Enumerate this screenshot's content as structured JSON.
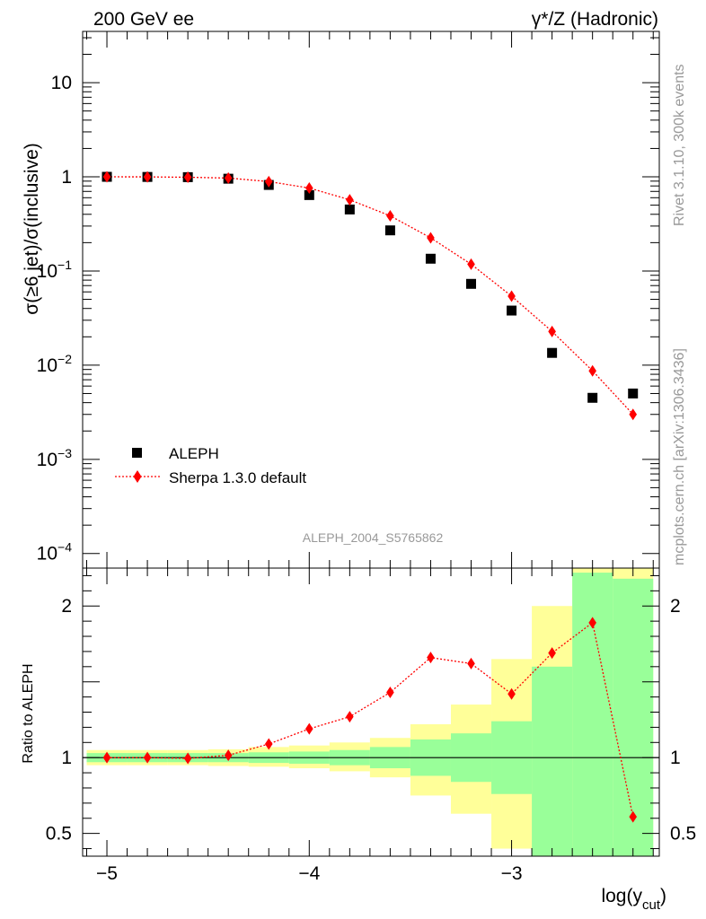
{
  "header": {
    "left": "200 GeV ee",
    "right": "γ*/Z (Hadronic)"
  },
  "side_labels": {
    "rivet": "Rivet 3.1.10,  300k events",
    "mcplots": "mcplots.cern.ch [arXiv:1306.3436]"
  },
  "watermark": "ALEPH_2004_S5765862",
  "colors": {
    "data": "#000000",
    "mc": "#ff0000",
    "band_inner": "#99ff99",
    "band_outer": "#ffff99"
  },
  "chart_data": [
    {
      "type": "scatter",
      "title": "",
      "ylabel": "σ(≥6 jet)/σ(inclusive)",
      "yscale": "log",
      "ylim": [
        7e-05,
        35
      ],
      "xlim": [
        -5.12,
        -2.27
      ],
      "ytick_labels": [
        {
          "value": 10,
          "label": "10"
        },
        {
          "value": 1,
          "label": "1"
        },
        {
          "value": 0.1,
          "base": "10",
          "exp": "−1"
        },
        {
          "value": 0.01,
          "base": "10",
          "exp": "−2"
        },
        {
          "value": 0.001,
          "base": "10",
          "exp": "−3"
        },
        {
          "value": 0.0001,
          "base": "10",
          "exp": "−4"
        }
      ],
      "legend": {
        "position": "bottom-left",
        "entries": [
          {
            "name": "ALEPH",
            "marker": "square"
          },
          {
            "name": "Sherpa 1.3.0 default",
            "marker": "diamond-dotted-line"
          }
        ]
      },
      "series": [
        {
          "name": "ALEPH",
          "x": [
            -5.0,
            -4.8,
            -4.6,
            -4.4,
            -4.2,
            -4.0,
            -3.8,
            -3.6,
            -3.4,
            -3.2,
            -3.0,
            -2.8,
            -2.6,
            -2.4
          ],
          "y": [
            1.0,
            0.997,
            0.992,
            0.955,
            0.82,
            0.64,
            0.45,
            0.27,
            0.135,
            0.073,
            0.038,
            0.0135,
            0.0045,
            0.005
          ]
        },
        {
          "name": "Sherpa 1.3.0 default",
          "x": [
            -5.0,
            -4.8,
            -4.6,
            -4.4,
            -4.2,
            -4.0,
            -3.8,
            -3.6,
            -3.4,
            -3.2,
            -3.0,
            -2.8,
            -2.6,
            -2.4
          ],
          "y": [
            1.0,
            0.998,
            0.99,
            0.97,
            0.89,
            0.76,
            0.57,
            0.385,
            0.225,
            0.118,
            0.054,
            0.0228,
            0.0087,
            0.003
          ]
        }
      ]
    },
    {
      "type": "scatter",
      "ylabel": "Ratio to ALEPH",
      "xlabel_main": "log(y",
      "xlabel_sub": "cut",
      "xlabel_end": ")",
      "ylim": [
        0.35,
        2.25
      ],
      "xlim": [
        -5.12,
        -2.27
      ],
      "xticks": [
        -5,
        -4,
        -3
      ],
      "xtick_labels": [
        "−5",
        "−4",
        "−3"
      ],
      "yticks": [
        2,
        1,
        0.5
      ],
      "ytick_labels": [
        "2",
        "1",
        "0.5"
      ],
      "reference_line": 1,
      "bands": {
        "edges": [
          -5.1,
          -4.9,
          -4.7,
          -4.5,
          -4.3,
          -4.1,
          -3.9,
          -3.7,
          -3.5,
          -3.3,
          -3.1,
          -2.9,
          -2.7,
          -2.5,
          -2.3
        ],
        "inner": [
          [
            0.97,
            1.03
          ],
          [
            0.97,
            1.03
          ],
          [
            0.97,
            1.03
          ],
          [
            0.97,
            1.03
          ],
          [
            0.965,
            1.035
          ],
          [
            0.96,
            1.04
          ],
          [
            0.95,
            1.05
          ],
          [
            0.93,
            1.07
          ],
          [
            0.88,
            1.12
          ],
          [
            0.84,
            1.16
          ],
          [
            0.76,
            1.24
          ],
          [
            0.35,
            1.6
          ],
          [
            0.35,
            2.22
          ],
          [
            0.35,
            2.18
          ]
        ],
        "outer": [
          [
            0.95,
            1.05
          ],
          [
            0.95,
            1.05
          ],
          [
            0.95,
            1.05
          ],
          [
            0.945,
            1.055
          ],
          [
            0.94,
            1.07
          ],
          [
            0.93,
            1.08
          ],
          [
            0.91,
            1.1
          ],
          [
            0.87,
            1.13
          ],
          [
            0.75,
            1.22
          ],
          [
            0.63,
            1.35
          ],
          [
            0.4,
            1.65
          ],
          [
            0.4,
            2.0
          ],
          [
            0.35,
            2.25
          ],
          [
            0.35,
            2.25
          ]
        ]
      },
      "series": [
        {
          "name": "Sherpa 1.3.0 default",
          "x": [
            -5.0,
            -4.8,
            -4.6,
            -4.4,
            -4.2,
            -4.0,
            -3.8,
            -3.6,
            -3.4,
            -3.2,
            -3.0,
            -2.8,
            -2.6,
            -2.4
          ],
          "y": [
            1.0,
            1.0,
            0.995,
            1.015,
            1.09,
            1.19,
            1.27,
            1.43,
            1.66,
            1.62,
            1.42,
            1.69,
            1.89,
            0.61
          ]
        }
      ]
    }
  ]
}
